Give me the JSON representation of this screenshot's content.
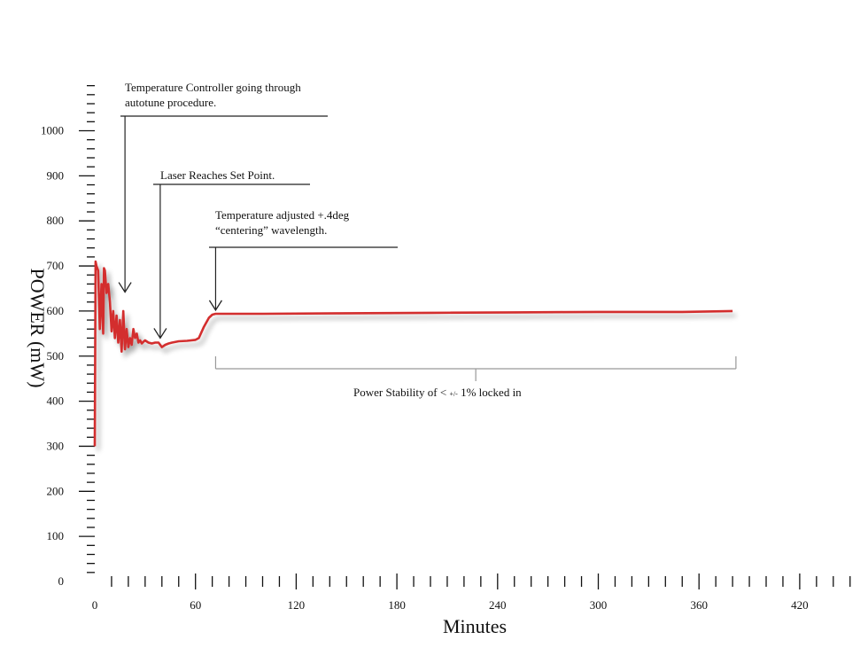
{
  "chart_data": {
    "type": "line",
    "xlabel": "Minutes",
    "ylabel": "POWER (mW)",
    "xlim": [
      0,
      450
    ],
    "ylim": [
      0,
      1100
    ],
    "x_ticks": [
      0,
      60,
      120,
      180,
      240,
      300,
      360,
      420
    ],
    "y_ticks": [
      0,
      100,
      200,
      300,
      400,
      500,
      600,
      700,
      800,
      900,
      1000
    ],
    "x_minor_step": 10,
    "y_minor_step": 20,
    "series_color": "#d32f2f",
    "axis_color": "#111111",
    "grid": false,
    "series": [
      {
        "x": [
          0,
          0.5,
          1,
          2,
          3,
          4,
          5,
          5.5,
          6,
          7,
          8,
          9,
          10,
          11,
          12,
          13,
          14,
          15,
          16,
          17,
          18,
          19,
          20,
          21,
          22,
          23,
          24,
          25,
          26,
          27,
          28,
          29,
          30,
          32,
          34,
          36,
          38,
          40,
          42,
          44,
          46,
          50,
          55,
          60,
          62,
          65,
          68,
          70,
          72,
          80,
          100,
          150,
          200,
          250,
          300,
          350,
          380
        ],
        "y": [
          300,
          710,
          700,
          690,
          560,
          660,
          550,
          695,
          690,
          640,
          660,
          620,
          555,
          600,
          540,
          590,
          530,
          580,
          510,
          600,
          515,
          560,
          520,
          540,
          525,
          560,
          540,
          550,
          530,
          535,
          528,
          532,
          535,
          530,
          528,
          530,
          530,
          520,
          525,
          528,
          530,
          533,
          534,
          536,
          540,
          565,
          585,
          592,
          594,
          594,
          594,
          595,
          596,
          597,
          598,
          598,
          600
        ]
      }
    ],
    "annotations": [
      {
        "text_lines": [
          "Temperature Controller going through",
          "autotune procedure."
        ],
        "arrow_x": 18,
        "arrow_y": 640
      },
      {
        "text_lines": [
          "Laser Reaches Set Point."
        ],
        "arrow_x": 39,
        "arrow_y": 538
      },
      {
        "text_lines": [
          "Temperature adjusted +.4deg",
          "“centering” wavelength."
        ],
        "arrow_x": 72,
        "arrow_y": 600
      }
    ],
    "bracket": {
      "x_start": 72,
      "x_end": 382,
      "label_prefix": "Power Stability of <",
      "label_small": "+/-",
      "label_suffix": "1% locked in"
    }
  }
}
